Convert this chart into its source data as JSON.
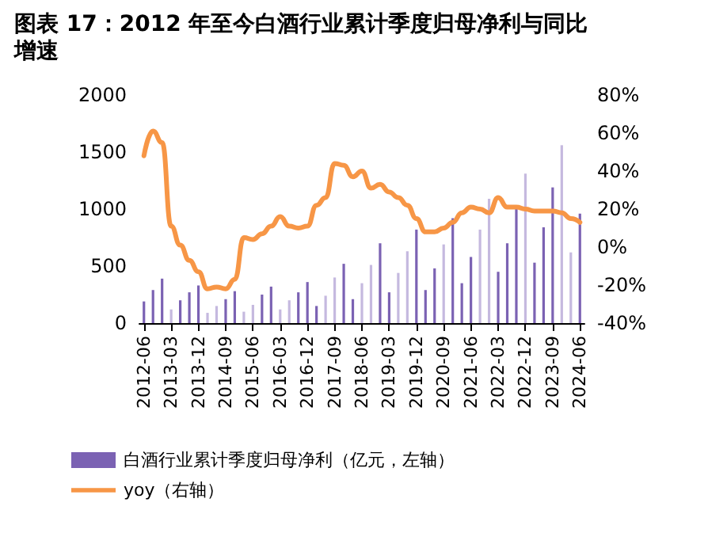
{
  "chart_data": {
    "type": "bar",
    "title": "图表 17：2012 年至今白酒行业累计季度归母净利与同比增速",
    "categories": [
      "2012-06",
      null,
      null,
      "2013-03",
      null,
      null,
      "2013-12",
      null,
      null,
      "2014-09",
      null,
      null,
      "2015-06",
      null,
      null,
      "2016-03",
      null,
      null,
      "2016-12",
      null,
      null,
      "2017-09",
      null,
      null,
      "2018-06",
      null,
      null,
      "2019-03",
      null,
      null,
      "2019-12",
      null,
      null,
      "2020-09",
      null,
      null,
      "2021-06",
      null,
      null,
      "2022-03",
      null,
      null,
      "2022-12",
      null,
      null,
      "2023-09",
      null,
      null,
      "2024-06"
    ],
    "series": [
      {
        "name": "白酒行业累计季度归母净利（亿元，左轴）",
        "color": "#7b62b3",
        "colors": [
          "#7b62b3",
          "#7b62b3",
          "#7b62b3",
          "#c5b9df",
          "#7b62b3",
          "#7b62b3",
          "#7b62b3",
          "#c5b9df",
          "#c5b9df",
          "#7b62b3",
          "#7b62b3",
          "#c5b9df",
          "#c5b9df",
          "#7b62b3",
          "#7b62b3",
          "#c5b9df",
          "#c5b9df",
          "#7b62b3",
          "#7b62b3",
          "#7b62b3",
          "#c5b9df",
          "#c5b9df",
          "#7b62b3",
          "#7b62b3",
          "#c5b9df",
          "#c5b9df",
          "#7b62b3",
          "#7b62b3",
          "#c5b9df",
          "#c5b9df",
          "#7b62b3",
          "#7b62b3",
          "#7b62b3",
          "#c5b9df",
          "#7b62b3",
          "#7b62b3",
          "#7b62b3",
          "#c5b9df",
          "#c5b9df",
          "#7b62b3",
          "#7b62b3",
          "#7b62b3",
          "#c5b9df",
          "#7b62b3",
          "#7b62b3",
          "#7b62b3",
          "#c5b9df",
          "#c5b9df",
          "#7b62b3"
        ],
        "values": [
          190,
          290,
          390,
          120,
          200,
          270,
          330,
          90,
          150,
          210,
          280,
          100,
          160,
          250,
          320,
          120,
          200,
          270,
          360,
          150,
          240,
          400,
          520,
          210,
          350,
          510,
          700,
          270,
          440,
          630,
          820,
          290,
          480,
          690,
          920,
          350,
          580,
          820,
          1090,
          450,
          700,
          1000,
          1310,
          530,
          840,
          1190,
          1560,
          620,
          960
        ]
      },
      {
        "name": "yoy（右轴）",
        "type": "line",
        "axis": "y2",
        "color": "#f79646",
        "values": [
          48,
          61,
          55,
          11,
          1,
          -7,
          -13,
          -22,
          -21,
          -22,
          -17,
          5,
          4,
          7,
          11,
          16,
          11,
          10,
          11,
          22,
          26,
          44,
          43,
          37,
          40,
          31,
          33,
          29,
          26,
          22,
          15,
          8,
          8,
          10,
          13,
          18,
          21,
          20,
          18,
          26,
          21,
          21,
          20,
          19,
          19,
          19,
          18,
          15,
          13
        ]
      }
    ],
    "ylim": [
      0,
      2000
    ],
    "yticks": [
      0,
      500,
      1000,
      1500,
      2000
    ],
    "y2lim": [
      -40,
      80
    ],
    "y2ticks": [
      {
        "value": -40,
        "label": "-40%"
      },
      {
        "value": -20,
        "label": "-20%"
      },
      {
        "value": 0,
        "label": "0%"
      },
      {
        "value": 20,
        "label": "20%"
      },
      {
        "value": 40,
        "label": "40%"
      },
      {
        "value": 60,
        "label": "60%"
      },
      {
        "value": 80,
        "label": "80%"
      }
    ],
    "legend": "bottom",
    "grid": false,
    "marker": "none",
    "line_style": "solid"
  }
}
